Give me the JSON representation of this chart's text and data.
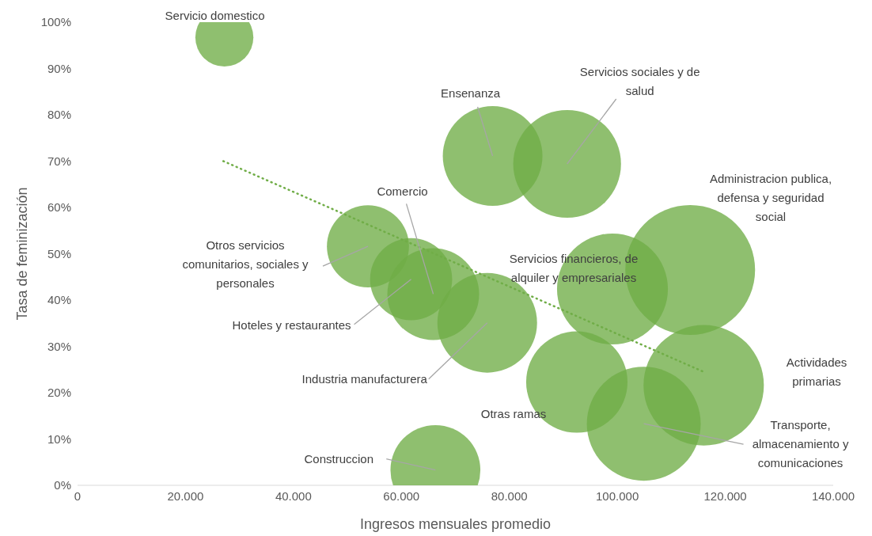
{
  "chart_data": {
    "type": "bubble",
    "xlabel": "Ingresos mensuales promedio",
    "ylabel": "Tasa de feminización",
    "xlim": [
      0,
      140000
    ],
    "ylim": [
      0,
      100
    ],
    "xticks": [
      {
        "value": 0,
        "label": "0"
      },
      {
        "value": 20000,
        "label": "20.000"
      },
      {
        "value": 40000,
        "label": "40.000"
      },
      {
        "value": 60000,
        "label": "60.000"
      },
      {
        "value": 80000,
        "label": "80.000"
      },
      {
        "value": 100000,
        "label": "100.000"
      },
      {
        "value": 120000,
        "label": "120.000"
      },
      {
        "value": 140000,
        "label": "140.000"
      }
    ],
    "yticks": [
      {
        "value": 0,
        "label": "0%"
      },
      {
        "value": 10,
        "label": "10%"
      },
      {
        "value": 20,
        "label": "20%"
      },
      {
        "value": 30,
        "label": "30%"
      },
      {
        "value": 40,
        "label": "40%"
      },
      {
        "value": 50,
        "label": "50%"
      },
      {
        "value": 60,
        "label": "60%"
      },
      {
        "value": 70,
        "label": "70%"
      },
      {
        "value": 80,
        "label": "80%"
      },
      {
        "value": 90,
        "label": "90%"
      },
      {
        "value": 100,
        "label": "100%"
      }
    ],
    "grid": false,
    "legend": false,
    "series": [
      {
        "type": "bubble",
        "color": "#70ad47",
        "x": [
          27200,
          76900,
          90700,
          113500,
          99100,
          53800,
          61800,
          65900,
          75900,
          92500,
          116000,
          104900,
          66300
        ],
        "values": [
          96.7,
          71.1,
          69.4,
          46.5,
          42.4,
          51.6,
          44.5,
          41.3,
          35.1,
          22.3,
          21.6,
          13.3,
          3.3
        ],
        "sizes": [
          0.2,
          0.59,
          0.69,
          1,
          0.73,
          0.4,
          0.4,
          0.5,
          0.59,
          0.61,
          0.86,
          0.77,
          0.48
        ]
      },
      {
        "type": "line",
        "color": "#70ad47",
        "line_style": "dotted",
        "x": [
          27000,
          116000
        ],
        "values": [
          70,
          24.5
        ]
      }
    ],
    "annotations": [
      {
        "text": "Servicio domestico",
        "x": 27200,
        "y": 96.7
      },
      {
        "text": "Ensenanza",
        "x": 76900,
        "y": 71.1
      },
      {
        "text": "Servicios sociales y de salud",
        "x": 90700,
        "y": 69.4
      },
      "Administracion publica, defensa y seguridad social",
      {
        "text": "Servicios financieros, de alquiler y empresariales",
        "x": 99100,
        "y": 42.4
      },
      {
        "text": "Otros servicios comunitarios, sociales y personales",
        "x": 53800,
        "y": 51.6
      },
      {
        "text": "Hoteles y restaurantes",
        "x": 61800,
        "y": 44.5
      },
      {
        "text": "Comercio",
        "x": 65900,
        "y": 41.3
      },
      {
        "text": "Industria manufacturera",
        "x": 75900,
        "y": 35.1
      },
      "Otras ramas",
      "Actividades primarias",
      {
        "text": "Transporte, almacenamiento y comunicaciones",
        "x": 104900,
        "y": 13.3
      },
      {
        "text": "Construccion",
        "x": 66300,
        "y": 3.3
      }
    ]
  }
}
